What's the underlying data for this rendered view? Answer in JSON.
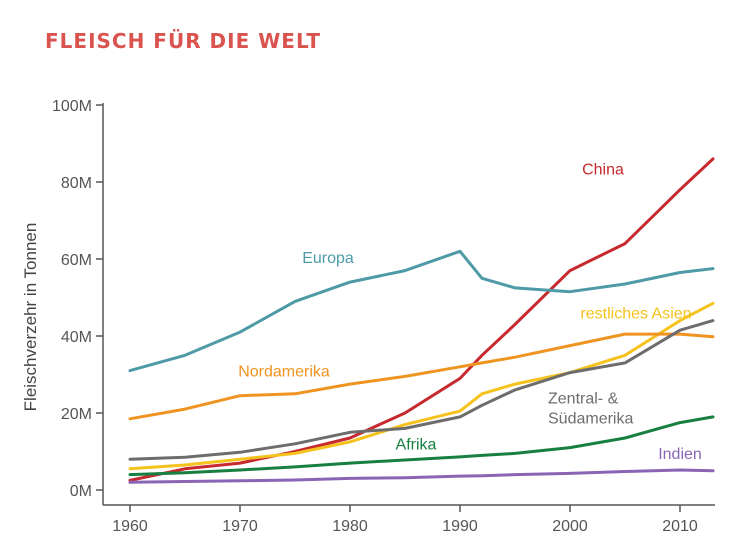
{
  "chart_data": {
    "type": "line",
    "title": "FLEISCH FÜR DIE WELT",
    "xlabel": "",
    "ylabel": "Fleischverzehr in Tonnen",
    "xlim": [
      1960,
      2013
    ],
    "ylim": [
      0,
      100000000
    ],
    "x_ticks": [
      1960,
      1970,
      1980,
      1990,
      2000,
      2010
    ],
    "x_tick_labels": [
      "1960",
      "1970",
      "1980",
      "1990",
      "2000",
      "2010"
    ],
    "y_ticks": [
      0,
      20000000,
      40000000,
      60000000,
      80000000,
      100000000
    ],
    "y_tick_labels": [
      "0M",
      "20M",
      "40M",
      "60M",
      "80M",
      "100M"
    ],
    "grid": false,
    "x": [
      1960,
      1965,
      1970,
      1975,
      1980,
      1985,
      1990,
      1992,
      1995,
      2000,
      2005,
      2010,
      2013
    ],
    "series": [
      {
        "name": "China",
        "color": "#c62a2f",
        "label_lines": [
          "China"
        ],
        "values": [
          2500000,
          5500000,
          7000000,
          10000000,
          13500000,
          20000000,
          29000000,
          35000000,
          43000000,
          57000000,
          64000000,
          78000000,
          86000000
        ]
      },
      {
        "name": "Europa",
        "color": "#4e9aa6",
        "label_lines": [
          "Europa"
        ],
        "values": [
          31000000,
          35000000,
          41000000,
          49000000,
          54000000,
          57000000,
          62000000,
          55000000,
          52500000,
          51500000,
          53500000,
          56500000,
          57500000
        ]
      },
      {
        "name": "restliches Asien",
        "color": "#f6c21c",
        "label_lines": [
          "restliches Asien"
        ],
        "values": [
          5500000,
          6500000,
          8000000,
          9500000,
          12500000,
          17000000,
          20500000,
          25000000,
          27500000,
          30500000,
          35000000,
          44000000,
          48500000
        ]
      },
      {
        "name": "Nordamerika",
        "color": "#ef9421",
        "label_lines": [
          "Nordamerika"
        ],
        "values": [
          18500000,
          21000000,
          24500000,
          25000000,
          27500000,
          29500000,
          32000000,
          33000000,
          34500000,
          37500000,
          40500000,
          40500000,
          39800000
        ]
      },
      {
        "name": "Zentral- & Südamerika",
        "color": "#6d6d6d",
        "label_lines": [
          "Zentral- &",
          "Südamerika"
        ],
        "values": [
          8000000,
          8500000,
          9800000,
          12000000,
          15000000,
          16000000,
          19000000,
          22000000,
          26000000,
          30500000,
          33000000,
          41500000,
          44000000
        ]
      },
      {
        "name": "Afrika",
        "color": "#178040",
        "label_lines": [
          "Afrika"
        ],
        "values": [
          4000000,
          4500000,
          5200000,
          6000000,
          7000000,
          7800000,
          8600000,
          9000000,
          9500000,
          11000000,
          13500000,
          17500000,
          19000000
        ]
      },
      {
        "name": "Indien",
        "color": "#8b65b5",
        "label_lines": [
          "Indien"
        ],
        "values": [
          2000000,
          2200000,
          2400000,
          2600000,
          3000000,
          3200000,
          3600000,
          3700000,
          4000000,
          4300000,
          4800000,
          5200000,
          5000000
        ]
      }
    ]
  }
}
